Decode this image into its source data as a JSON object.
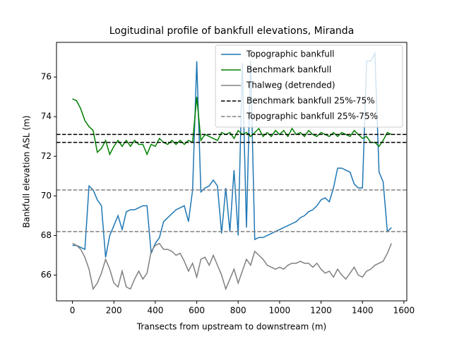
{
  "chart_data": {
    "type": "line",
    "title": "Logitudinal profile of bankfull elevations, Miranda",
    "xlabel": "Transects from upstream to downstream (m)",
    "ylabel": "Bankfull elevation ASL (m)",
    "x": [
      0,
      20,
      40,
      60,
      80,
      100,
      120,
      140,
      160,
      180,
      200,
      220,
      240,
      260,
      280,
      300,
      320,
      340,
      360,
      380,
      400,
      420,
      440,
      460,
      480,
      500,
      520,
      540,
      560,
      580,
      600,
      620,
      640,
      660,
      680,
      700,
      720,
      740,
      760,
      780,
      800,
      820,
      840,
      860,
      880,
      900,
      920,
      940,
      960,
      980,
      1000,
      1020,
      1040,
      1060,
      1080,
      1100,
      1120,
      1140,
      1160,
      1180,
      1200,
      1220,
      1240,
      1260,
      1280,
      1300,
      1320,
      1340,
      1360,
      1380,
      1400,
      1420,
      1440,
      1460,
      1480,
      1500,
      1520,
      1540
    ],
    "series": [
      {
        "name": "Topographic bankfull",
        "color": "#1f77b4",
        "values": [
          67.5,
          67.5,
          67.4,
          67.3,
          70.5,
          70.3,
          69.8,
          69.5,
          66.9,
          68.0,
          68.5,
          69.0,
          68.3,
          69.2,
          69.3,
          69.3,
          69.4,
          69.5,
          69.5,
          67.1,
          67.6,
          67.9,
          68.7,
          68.9,
          69.1,
          69.3,
          69.4,
          69.5,
          68.7,
          70.3,
          76.8,
          70.2,
          70.4,
          70.5,
          70.8,
          70.5,
          68.1,
          70.4,
          68.2,
          71.3,
          68.0,
          76.7,
          68.4,
          76.8,
          67.8,
          67.9,
          67.9,
          68.0,
          68.1,
          68.2,
          68.3,
          68.4,
          68.5,
          68.6,
          68.7,
          68.9,
          69.0,
          69.2,
          69.3,
          69.5,
          69.8,
          69.9,
          69.7,
          70.4,
          71.4,
          71.4,
          71.3,
          71.2,
          70.6,
          70.4,
          70.4,
          76.8,
          76.8,
          77.2,
          71.2,
          70.7,
          68.2,
          68.4
        ]
      },
      {
        "name": "Benchmark bankfull",
        "color": "#008000",
        "values": [
          74.9,
          74.8,
          74.4,
          73.8,
          73.5,
          73.3,
          72.2,
          72.4,
          72.8,
          72.1,
          72.5,
          72.8,
          72.5,
          72.8,
          72.5,
          72.8,
          72.6,
          72.6,
          72.1,
          72.6,
          72.5,
          72.9,
          72.7,
          72.6,
          72.8,
          72.6,
          72.8,
          72.6,
          72.8,
          72.7,
          75.0,
          72.8,
          73.1,
          73.0,
          72.9,
          72.8,
          73.2,
          73.1,
          73.2,
          72.9,
          73.3,
          73.1,
          73.2,
          73.0,
          73.2,
          73.4,
          73.0,
          73.2,
          73.0,
          73.3,
          73.1,
          73.3,
          73.0,
          73.4,
          73.1,
          73.2,
          73.0,
          73.3,
          73.1,
          73.0,
          73.2,
          73.1,
          73.0,
          73.2,
          73.0,
          73.2,
          73.1,
          73.0,
          73.3,
          73.1,
          72.9,
          73.0,
          72.7,
          72.7,
          72.5,
          72.8,
          73.2,
          73.1
        ]
      },
      {
        "name": "Thalweg (detrended)",
        "color": "#808080",
        "values": [
          67.6,
          67.5,
          67.3,
          66.9,
          66.3,
          65.3,
          65.6,
          66.1,
          66.8,
          66.3,
          65.6,
          65.4,
          66.2,
          65.4,
          65.3,
          65.8,
          66.2,
          65.8,
          66.1,
          67.2,
          67.5,
          67.6,
          67.3,
          67.3,
          67.2,
          67.0,
          67.1,
          66.7,
          66.2,
          66.6,
          65.9,
          66.8,
          66.9,
          66.5,
          67.0,
          66.5,
          66.0,
          65.3,
          65.8,
          66.3,
          65.6,
          66.2,
          66.8,
          66.5,
          67.2,
          67.0,
          66.8,
          66.5,
          66.4,
          66.3,
          66.4,
          66.3,
          66.5,
          66.6,
          66.6,
          66.7,
          66.6,
          66.6,
          66.4,
          66.6,
          66.3,
          66.1,
          66.2,
          65.9,
          66.3,
          66.0,
          65.8,
          66.1,
          66.4,
          66.0,
          65.9,
          66.2,
          66.3,
          66.5,
          66.6,
          66.7,
          67.1,
          67.6
        ]
      }
    ],
    "reference_lines": [
      {
        "name": "Benchmark bankfull 25%-75%",
        "color": "#000000",
        "values": [
          72.7,
          73.1
        ]
      },
      {
        "name": "Topographic bankfull 25%-75%",
        "color": "#808080",
        "values": [
          68.2,
          70.3
        ]
      }
    ],
    "xlim": [
      -77,
      1614
    ],
    "xticks": [
      0,
      200,
      400,
      600,
      800,
      1000,
      1200,
      1400,
      1600
    ],
    "ylim": [
      64.7,
      77.75
    ],
    "yticks": [
      66,
      68,
      70,
      72,
      74,
      76
    ],
    "grid": false,
    "legend": "upper right"
  }
}
